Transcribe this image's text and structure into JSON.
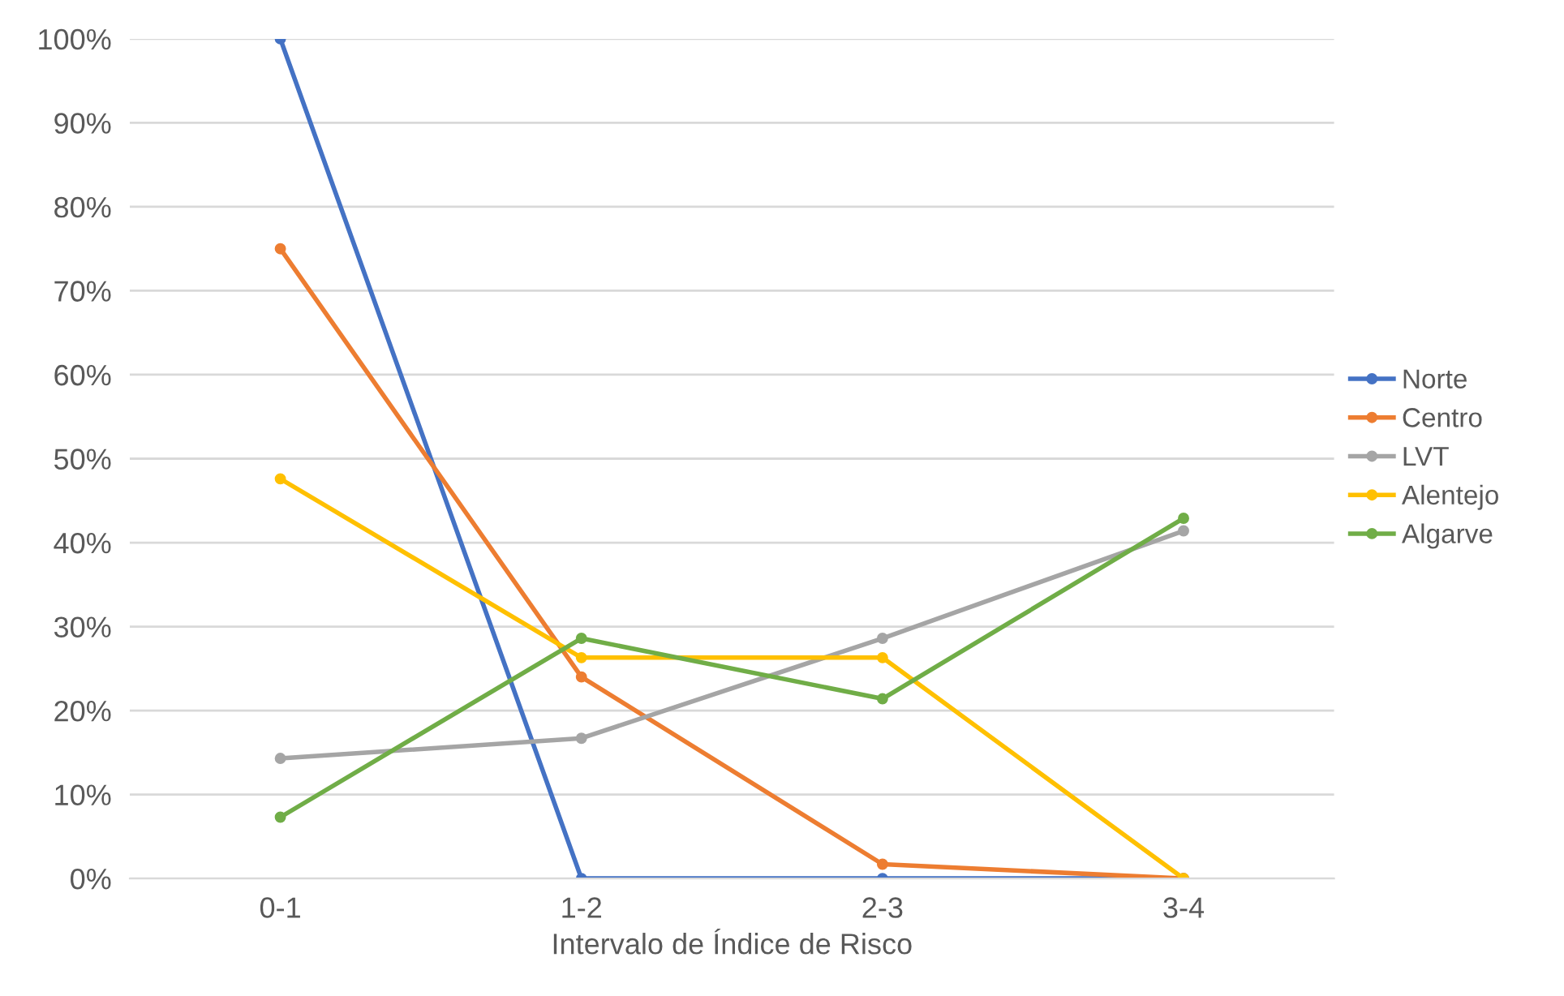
{
  "chart_data": {
    "type": "line",
    "xlabel": "Intervalo de Índice de Risco",
    "categories": [
      "0-1",
      "1-2",
      "2-3",
      "3-4"
    ],
    "series": [
      {
        "name": "Norte",
        "color": "#4472c4",
        "values": [
          100,
          0,
          0,
          0
        ]
      },
      {
        "name": "Centro",
        "color": "#ed7d31",
        "values": [
          75,
          24,
          1.7,
          0
        ]
      },
      {
        "name": "LVT",
        "color": "#a5a5a5",
        "values": [
          14.3,
          16.7,
          28.6,
          41.4
        ]
      },
      {
        "name": "Alentejo",
        "color": "#ffc000",
        "values": [
          47.6,
          26.3,
          26.3,
          0
        ]
      },
      {
        "name": "Algarve",
        "color": "#70ad47",
        "values": [
          7.3,
          28.6,
          21.4,
          42.9
        ]
      }
    ],
    "ylim": [
      0,
      100
    ],
    "yticks": [
      {
        "value": 0,
        "label": "0%"
      },
      {
        "value": 10,
        "label": "10%"
      },
      {
        "value": 20,
        "label": "20%"
      },
      {
        "value": 30,
        "label": "30%"
      },
      {
        "value": 40,
        "label": "40%"
      },
      {
        "value": 50,
        "label": "50%"
      },
      {
        "value": 60,
        "label": "60%"
      },
      {
        "value": 70,
        "label": "70%"
      },
      {
        "value": 80,
        "label": "80%"
      },
      {
        "value": 90,
        "label": "90%"
      },
      {
        "value": 100,
        "label": "100%"
      }
    ],
    "grid": "y",
    "legend": "right",
    "marker": "circle",
    "line_style": "solid"
  }
}
